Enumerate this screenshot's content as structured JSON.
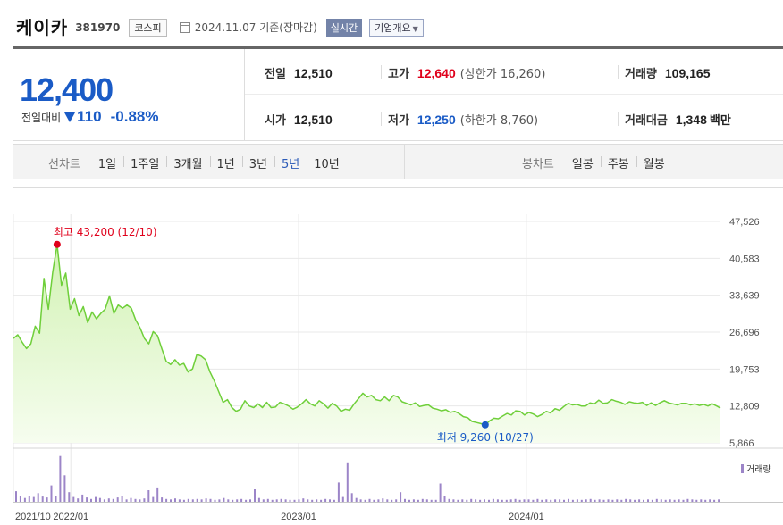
{
  "header": {
    "company_name": "케이카",
    "code": "381970",
    "market": "코스피",
    "date_text": "2024.11.07 기준(장마감)",
    "realtime_label": "실시간",
    "company_info_label": "기업개요"
  },
  "quote": {
    "price": "12,400",
    "change_label": "전일대비",
    "change_value": "110",
    "change_pct": "-0.88%",
    "prev_close_label": "전일",
    "prev_close": "12,510",
    "open_label": "시가",
    "open": "12,510",
    "high_label": "고가",
    "high": "12,640",
    "upper_limit": "(상한가 16,260)",
    "low_label": "저가",
    "low": "12,250",
    "lower_limit": "(하한가 8,760)",
    "volume_label": "거래량",
    "volume": "109,165",
    "amount_label": "거래대금",
    "amount": "1,348",
    "amount_unit": "백만"
  },
  "tabs": {
    "line_group": "선차트",
    "line_items": [
      "1일",
      "1주일",
      "3개월",
      "1년",
      "3년",
      "5년",
      "10년"
    ],
    "line_active": "5년",
    "candle_group": "봉차트",
    "candle_items": [
      "일봉",
      "주봉",
      "월봉"
    ]
  },
  "colors": {
    "price_blue": "#1a5bc6",
    "up_red": "#e0001b",
    "line_green": "#6fcf3a",
    "fill_green": "#e2f8d0",
    "volume_purple": "#9c85c8"
  },
  "chart_data": {
    "type": "area",
    "y_ticks": [
      "47,526",
      "40,583",
      "33,639",
      "26,696",
      "19,753",
      "12,809",
      "5,866"
    ],
    "y_tick_values": [
      47526,
      40583,
      33639,
      26696,
      19753,
      12809,
      5866
    ],
    "ylim": [
      5866,
      47526
    ],
    "x_ticks": [
      "2021/10",
      "2022/01",
      "2023/01",
      "2024/01"
    ],
    "x_tick_dates": [
      "2021-10-01",
      "2022-01-01",
      "2023-01-01",
      "2024-01-01"
    ],
    "xlim": [
      "2021-10-01",
      "2024-11-07"
    ],
    "grid": true,
    "high_label": "최고 43,200 (12/10)",
    "high_point": {
      "date": "2021-12-10",
      "value": 43200
    },
    "low_label": "최저 9,260 (10/27)",
    "low_point": {
      "date": "2023-10-27",
      "value": 9260
    },
    "series": [
      {
        "points": [
          [
            "2021-10-01",
            25500
          ],
          [
            "2021-10-08",
            26200
          ],
          [
            "2021-10-15",
            24800
          ],
          [
            "2021-10-22",
            23600
          ],
          [
            "2021-10-29",
            24500
          ],
          [
            "2021-11-05",
            27800
          ],
          [
            "2021-11-12",
            26500
          ],
          [
            "2021-11-19",
            36800
          ],
          [
            "2021-11-26",
            31000
          ],
          [
            "2021-12-03",
            38000
          ],
          [
            "2021-12-10",
            43200
          ],
          [
            "2021-12-17",
            35500
          ],
          [
            "2021-12-24",
            37800
          ],
          [
            "2021-12-31",
            31000
          ],
          [
            "2022-01-07",
            33000
          ],
          [
            "2022-01-14",
            29800
          ],
          [
            "2022-01-21",
            31500
          ],
          [
            "2022-01-28",
            28500
          ],
          [
            "2022-02-04",
            30500
          ],
          [
            "2022-02-11",
            29200
          ],
          [
            "2022-02-18",
            30200
          ],
          [
            "2022-02-25",
            31000
          ],
          [
            "2022-03-04",
            33500
          ],
          [
            "2022-03-11",
            30200
          ],
          [
            "2022-03-18",
            31800
          ],
          [
            "2022-03-25",
            31200
          ],
          [
            "2022-04-01",
            31800
          ],
          [
            "2022-04-08",
            31200
          ],
          [
            "2022-04-15",
            29000
          ],
          [
            "2022-04-22",
            27500
          ],
          [
            "2022-04-29",
            25500
          ],
          [
            "2022-05-06",
            24500
          ],
          [
            "2022-05-13",
            26800
          ],
          [
            "2022-05-20",
            26000
          ],
          [
            "2022-05-27",
            23500
          ],
          [
            "2022-06-03",
            21200
          ],
          [
            "2022-06-10",
            20600
          ],
          [
            "2022-06-17",
            21500
          ],
          [
            "2022-06-24",
            20500
          ],
          [
            "2022-07-01",
            20800
          ],
          [
            "2022-07-08",
            19200
          ],
          [
            "2022-07-15",
            19800
          ],
          [
            "2022-07-22",
            22500
          ],
          [
            "2022-07-29",
            22200
          ],
          [
            "2022-08-05",
            21500
          ],
          [
            "2022-08-12",
            19200
          ],
          [
            "2022-08-19",
            17500
          ],
          [
            "2022-08-26",
            15500
          ],
          [
            "2022-09-02",
            13500
          ],
          [
            "2022-09-09",
            14000
          ],
          [
            "2022-09-16",
            12500
          ],
          [
            "2022-09-23",
            11800
          ],
          [
            "2022-09-30",
            12200
          ],
          [
            "2022-10-07",
            13800
          ],
          [
            "2022-10-14",
            12800
          ],
          [
            "2022-10-21",
            12500
          ],
          [
            "2022-10-28",
            13200
          ],
          [
            "2022-11-04",
            12500
          ],
          [
            "2022-11-11",
            13500
          ],
          [
            "2022-11-18",
            12500
          ],
          [
            "2022-11-25",
            12600
          ],
          [
            "2022-12-02",
            13500
          ],
          [
            "2022-12-09",
            13200
          ],
          [
            "2022-12-16",
            12800
          ],
          [
            "2022-12-23",
            12200
          ],
          [
            "2022-12-30",
            12600
          ],
          [
            "2023-01-06",
            13200
          ],
          [
            "2023-01-13",
            14000
          ],
          [
            "2023-01-20",
            13200
          ],
          [
            "2023-01-27",
            12800
          ],
          [
            "2023-02-03",
            13800
          ],
          [
            "2023-02-10",
            13200
          ],
          [
            "2023-02-17",
            12400
          ],
          [
            "2023-02-24",
            13300
          ],
          [
            "2023-03-03",
            12800
          ],
          [
            "2023-03-10",
            11800
          ],
          [
            "2023-03-17",
            12200
          ],
          [
            "2023-03-24",
            12000
          ],
          [
            "2023-03-31",
            13200
          ],
          [
            "2023-04-07",
            14200
          ],
          [
            "2023-04-14",
            15200
          ],
          [
            "2023-04-21",
            14500
          ],
          [
            "2023-04-28",
            14800
          ],
          [
            "2023-05-05",
            14000
          ],
          [
            "2023-05-12",
            13800
          ],
          [
            "2023-05-19",
            14500
          ],
          [
            "2023-05-26",
            13800
          ],
          [
            "2023-06-02",
            14800
          ],
          [
            "2023-06-09",
            14500
          ],
          [
            "2023-06-16",
            13600
          ],
          [
            "2023-06-23",
            13300
          ],
          [
            "2023-06-30",
            13000
          ],
          [
            "2023-07-07",
            13400
          ],
          [
            "2023-07-14",
            12700
          ],
          [
            "2023-07-21",
            12900
          ],
          [
            "2023-07-28",
            13000
          ],
          [
            "2023-08-04",
            12400
          ],
          [
            "2023-08-11",
            12200
          ],
          [
            "2023-08-18",
            11900
          ],
          [
            "2023-08-25",
            12100
          ],
          [
            "2023-09-01",
            11600
          ],
          [
            "2023-09-08",
            11800
          ],
          [
            "2023-09-15",
            11400
          ],
          [
            "2023-09-22",
            10800
          ],
          [
            "2023-09-29",
            10600
          ],
          [
            "2023-10-06",
            9900
          ],
          [
            "2023-10-13",
            9700
          ],
          [
            "2023-10-20",
            9500
          ],
          [
            "2023-10-27",
            9260
          ],
          [
            "2023-11-03",
            10000
          ],
          [
            "2023-11-10",
            10500
          ],
          [
            "2023-11-17",
            10400
          ],
          [
            "2023-11-24",
            10900
          ],
          [
            "2023-12-01",
            11400
          ],
          [
            "2023-12-08",
            11100
          ],
          [
            "2023-12-15",
            11900
          ],
          [
            "2023-12-22",
            11800
          ],
          [
            "2023-12-29",
            11100
          ],
          [
            "2024-01-05",
            11600
          ],
          [
            "2024-01-12",
            11300
          ],
          [
            "2024-01-19",
            10800
          ],
          [
            "2024-01-26",
            11200
          ],
          [
            "2024-02-02",
            11800
          ],
          [
            "2024-02-09",
            11500
          ],
          [
            "2024-02-16",
            12300
          ],
          [
            "2024-02-23",
            12000
          ],
          [
            "2024-03-01",
            12700
          ],
          [
            "2024-03-08",
            13300
          ],
          [
            "2024-03-15",
            13000
          ],
          [
            "2024-03-22",
            13100
          ],
          [
            "2024-03-29",
            12800
          ],
          [
            "2024-04-05",
            12800
          ],
          [
            "2024-04-12",
            13400
          ],
          [
            "2024-04-19",
            13200
          ],
          [
            "2024-04-26",
            13900
          ],
          [
            "2024-05-03",
            13300
          ],
          [
            "2024-05-10",
            13400
          ],
          [
            "2024-05-17",
            14000
          ],
          [
            "2024-05-24",
            13700
          ],
          [
            "2024-05-31",
            13500
          ],
          [
            "2024-06-07",
            13100
          ],
          [
            "2024-06-14",
            13600
          ],
          [
            "2024-06-21",
            13400
          ],
          [
            "2024-06-28",
            13300
          ],
          [
            "2024-07-05",
            13500
          ],
          [
            "2024-07-12",
            12900
          ],
          [
            "2024-07-19",
            13400
          ],
          [
            "2024-07-26",
            12900
          ],
          [
            "2024-08-02",
            13400
          ],
          [
            "2024-08-09",
            13800
          ],
          [
            "2024-08-16",
            13400
          ],
          [
            "2024-08-23",
            13200
          ],
          [
            "2024-08-30",
            13000
          ],
          [
            "2024-09-06",
            13300
          ],
          [
            "2024-09-13",
            13300
          ],
          [
            "2024-09-20",
            13000
          ],
          [
            "2024-09-27",
            13200
          ],
          [
            "2024-10-04",
            12900
          ],
          [
            "2024-10-11",
            13100
          ],
          [
            "2024-10-18",
            12800
          ],
          [
            "2024-10-25",
            13200
          ],
          [
            "2024-11-01",
            12800
          ],
          [
            "2024-11-07",
            12400
          ]
        ]
      }
    ]
  },
  "volume_chart": {
    "legend": "거래량",
    "bars": [
      0.22,
      0.12,
      0.08,
      0.13,
      0.1,
      0.18,
      0.11,
      0.09,
      0.34,
      0.12,
      0.95,
      0.55,
      0.2,
      0.1,
      0.07,
      0.15,
      0.09,
      0.06,
      0.1,
      0.08,
      0.05,
      0.07,
      0.06,
      0.09,
      0.12,
      0.05,
      0.08,
      0.06,
      0.05,
      0.07,
      0.24,
      0.1,
      0.28,
      0.09,
      0.06,
      0.05,
      0.07,
      0.05,
      0.04,
      0.06,
      0.05,
      0.06,
      0.05,
      0.07,
      0.06,
      0.04,
      0.05,
      0.08,
      0.05,
      0.04,
      0.05,
      0.06,
      0.04,
      0.05,
      0.26,
      0.08,
      0.05,
      0.06,
      0.04,
      0.05,
      0.06,
      0.05,
      0.04,
      0.04,
      0.05,
      0.07,
      0.05,
      0.04,
      0.05,
      0.04,
      0.06,
      0.05,
      0.04,
      0.4,
      0.1,
      0.8,
      0.18,
      0.08,
      0.05,
      0.04,
      0.06,
      0.04,
      0.05,
      0.07,
      0.05,
      0.04,
      0.05,
      0.2,
      0.06,
      0.04,
      0.05,
      0.04,
      0.06,
      0.05,
      0.04,
      0.04,
      0.38,
      0.12,
      0.06,
      0.05,
      0.04,
      0.05,
      0.04,
      0.06,
      0.05,
      0.04,
      0.05,
      0.04,
      0.06,
      0.05,
      0.04,
      0.04,
      0.05,
      0.06,
      0.04,
      0.05,
      0.05,
      0.04,
      0.06,
      0.04,
      0.05,
      0.04,
      0.05,
      0.05,
      0.04,
      0.06,
      0.04,
      0.05,
      0.04,
      0.05,
      0.06,
      0.04,
      0.05,
      0.04,
      0.05,
      0.04,
      0.05,
      0.04,
      0.06,
      0.05,
      0.04,
      0.05,
      0.04,
      0.05,
      0.04,
      0.06,
      0.05,
      0.04,
      0.05,
      0.04,
      0.05,
      0.04,
      0.06,
      0.05,
      0.04,
      0.05,
      0.04,
      0.05,
      0.04,
      0.05
    ]
  }
}
